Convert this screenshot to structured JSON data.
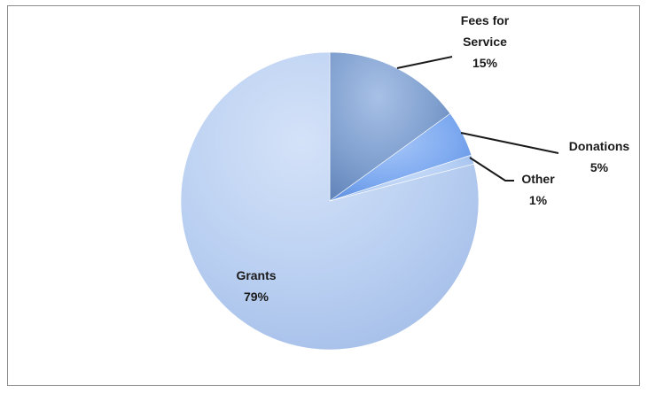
{
  "chart_data": {
    "type": "pie",
    "title": "",
    "slices": [
      {
        "label_lines": [
          "Fees for",
          "Service"
        ],
        "pct_label": "15%",
        "value": 15,
        "color": "#7f9fce",
        "highlight": "#a7c0e6",
        "shade": "#5f82b8"
      },
      {
        "label_lines": [
          "Donations"
        ],
        "pct_label": "5%",
        "value": 5,
        "color": "#7eaaf0",
        "highlight": "#a9c8f8",
        "shade": "#5d8ee0"
      },
      {
        "label_lines": [
          "Other"
        ],
        "pct_label": "1%",
        "value": 1,
        "color": "#b3cdf3",
        "highlight": "#cfe0fa",
        "shade": "#9ab9ea"
      },
      {
        "label_lines": [
          "Grants"
        ],
        "pct_label": "79%",
        "value": 79,
        "color": "#b9cff1",
        "highlight": "#d4e2f8",
        "shade": "#a3bde8"
      }
    ],
    "start_angle_deg": 0,
    "direction": "clockwise",
    "legend": "none"
  }
}
